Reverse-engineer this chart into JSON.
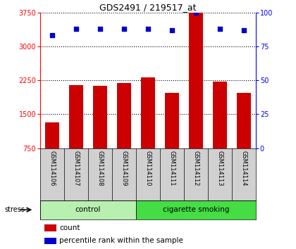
{
  "title": "GDS2491 / 219517_at",
  "samples": [
    "GSM114106",
    "GSM114107",
    "GSM114108",
    "GSM114109",
    "GSM114110",
    "GSM114111",
    "GSM114112",
    "GSM114113",
    "GSM114114"
  ],
  "counts": [
    1320,
    2150,
    2130,
    2190,
    2320,
    1980,
    3750,
    2220,
    1980
  ],
  "percentile_ranks": [
    83,
    88,
    88,
    88,
    88,
    87,
    100,
    88,
    87
  ],
  "groups": [
    {
      "label": "control",
      "start": 0,
      "end": 4,
      "color": "#b8f0b0"
    },
    {
      "label": "cigarette smoking",
      "start": 4,
      "end": 9,
      "color": "#44dd44"
    }
  ],
  "stress_label": "stress",
  "ylim_left": [
    750,
    3750
  ],
  "yticks_left": [
    750,
    1500,
    2250,
    3000,
    3750
  ],
  "ylim_right": [
    0,
    100
  ],
  "yticks_right": [
    0,
    25,
    50,
    75,
    100
  ],
  "bar_color": "#cc0000",
  "dot_color": "#0000cc",
  "bar_width": 0.6,
  "background_color": "#ffffff",
  "label_bg_color": "#d0d0d0"
}
